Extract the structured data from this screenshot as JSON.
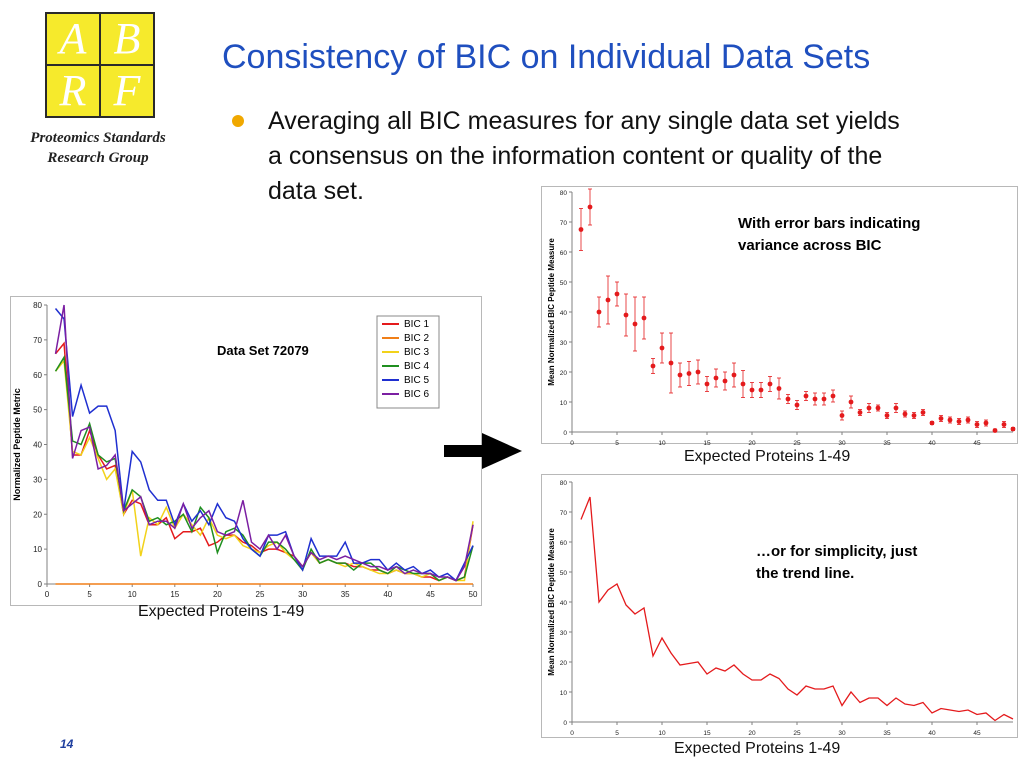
{
  "logo": {
    "letters": [
      "A",
      "B",
      "R",
      "F"
    ],
    "org_line1": "Proteomics Standards",
    "org_line2": "Research Group"
  },
  "title": "Consistency of BIC on Individual Data Sets",
  "bullet_lines": [
    "Averaging all BIC measures for any single data set yields",
    "a consensus on the information content or quality of the",
    "data set."
  ],
  "left_chart": {
    "caption": "Expected Proteins 1-49"
  },
  "right_top": {
    "caption": "Expected Proteins 1-49",
    "note_line1": "With error bars indicating",
    "note_line2": "variance across BIC"
  },
  "right_bottom": {
    "caption": "Expected Proteins 1-49",
    "note_line1": "…or for simplicity, just",
    "note_line2": "the trend line."
  },
  "page_number": "14",
  "colors": {
    "title": "#1f4fbf",
    "bullet": "#f0a800",
    "logo_fill": "#f6ea2c",
    "mean_series": "#e41a1c"
  },
  "chart_data": [
    {
      "type": "line",
      "title": "Data Set 72079",
      "xlabel": "",
      "ylabel": "Normalized Peptide Metric",
      "xlim": [
        0,
        50
      ],
      "ylim": [
        0,
        80
      ],
      "xticks": [
        0,
        5,
        10,
        15,
        20,
        25,
        30,
        35,
        40,
        45,
        50
      ],
      "yticks": [
        0,
        10,
        20,
        30,
        40,
        50,
        60,
        70,
        80
      ],
      "grid": false,
      "legend_position": "top-right",
      "x": [
        1,
        2,
        3,
        4,
        5,
        6,
        7,
        8,
        9,
        10,
        11,
        12,
        13,
        14,
        15,
        16,
        17,
        18,
        19,
        20,
        21,
        22,
        23,
        24,
        25,
        26,
        27,
        28,
        29,
        30,
        31,
        32,
        33,
        34,
        35,
        36,
        37,
        38,
        39,
        40,
        41,
        42,
        43,
        44,
        45,
        46,
        47,
        48,
        49,
        50
      ],
      "series": [
        {
          "name": "BIC 1",
          "color": "#e41a1c",
          "values": [
            66,
            69,
            37,
            37,
            44,
            37,
            33,
            34,
            20,
            24,
            23,
            17,
            17,
            19,
            13,
            15,
            15,
            16,
            11,
            12,
            14,
            14,
            12,
            11,
            9,
            10,
            10,
            9,
            8,
            5,
            9,
            6,
            7,
            6,
            6,
            5,
            5,
            4,
            4,
            3,
            4,
            3,
            3,
            2,
            2,
            1,
            2,
            1,
            2,
            17
          ]
        },
        {
          "name": "BIC 2",
          "color": "#f07f18",
          "values": [
            0,
            0,
            0,
            0,
            0,
            0,
            0,
            0,
            0,
            0,
            0,
            0,
            0,
            0,
            0,
            0,
            0,
            0,
            0,
            0,
            0,
            0,
            0,
            0,
            0,
            0,
            0,
            0,
            0,
            0,
            0,
            0,
            0,
            0,
            0,
            0,
            0,
            0,
            0,
            0,
            0,
            0,
            0,
            0,
            0,
            0,
            0,
            0,
            0,
            0
          ]
        },
        {
          "name": "BIC 3",
          "color": "#f2d21a",
          "values": [
            61,
            64,
            38,
            37,
            42,
            36,
            30,
            33,
            20,
            27,
            8,
            19,
            17,
            22,
            16,
            20,
            17,
            14,
            19,
            14,
            13,
            14,
            11,
            10,
            9,
            11,
            12,
            9,
            7,
            5,
            9,
            6,
            7,
            6,
            5,
            6,
            5,
            4,
            3,
            3,
            4,
            3,
            3,
            2,
            3,
            1,
            2,
            1,
            1,
            18
          ]
        },
        {
          "name": "BIC 4",
          "color": "#1f8f1f",
          "values": [
            61,
            65,
            41,
            40,
            46,
            37,
            35,
            36,
            21,
            27,
            25,
            18,
            19,
            17,
            18,
            20,
            15,
            22,
            19,
            9,
            15,
            16,
            14,
            10,
            8,
            12,
            12,
            10,
            7,
            4,
            10,
            6,
            7,
            6,
            6,
            4,
            6,
            6,
            4,
            3,
            5,
            4,
            3,
            3,
            3,
            1,
            2,
            1,
            2,
            11
          ]
        },
        {
          "name": "BIC 5",
          "color": "#1f2fd0",
          "values": [
            79,
            76,
            48,
            57,
            49,
            51,
            51,
            44,
            21,
            38,
            35,
            27,
            24,
            24,
            17,
            23,
            18,
            21,
            17,
            23,
            19,
            18,
            13,
            10,
            8,
            14,
            14,
            15,
            8,
            4,
            13,
            8,
            8,
            8,
            12,
            6,
            6,
            7,
            7,
            4,
            6,
            4,
            5,
            3,
            4,
            2,
            3,
            1,
            6,
            11
          ]
        },
        {
          "name": "BIC 6",
          "color": "#7b1fa2",
          "values": [
            66,
            80,
            36,
            44,
            45,
            33,
            34,
            37,
            21,
            23,
            25,
            17,
            18,
            18,
            16,
            23,
            16,
            19,
            21,
            15,
            14,
            15,
            24,
            12,
            10,
            14,
            10,
            14,
            8,
            5,
            9,
            7,
            8,
            7,
            8,
            7,
            6,
            5,
            5,
            4,
            5,
            3,
            4,
            3,
            3,
            2,
            2,
            1,
            5,
            17
          ]
        }
      ]
    },
    {
      "type": "scatter",
      "title": "",
      "xlabel": "",
      "ylabel": "Mean Normalized BIC Peptide Measure",
      "xlim": [
        0,
        49
      ],
      "ylim": [
        0,
        80
      ],
      "xticks": [
        0,
        5,
        10,
        15,
        20,
        25,
        30,
        35,
        40,
        45
      ],
      "yticks": [
        0,
        10,
        20,
        30,
        40,
        50,
        60,
        70,
        80
      ],
      "grid": false,
      "error_bars": true,
      "x": [
        1,
        2,
        3,
        4,
        5,
        6,
        7,
        8,
        9,
        10,
        11,
        12,
        13,
        14,
        15,
        16,
        17,
        18,
        19,
        20,
        21,
        22,
        23,
        24,
        25,
        26,
        27,
        28,
        29,
        30,
        31,
        32,
        33,
        34,
        35,
        36,
        37,
        38,
        39,
        40,
        41,
        42,
        43,
        44,
        45,
        46,
        47,
        48,
        49
      ],
      "series": [
        {
          "name": "",
          "color": "#e41a1c",
          "values": [
            67.5,
            75,
            40,
            44,
            46,
            39,
            36,
            38,
            22,
            28,
            23,
            19,
            19.5,
            20,
            16,
            18,
            17,
            19,
            16,
            14,
            14,
            16,
            14.5,
            11,
            9,
            12,
            11,
            11,
            12,
            5.5,
            10,
            6.5,
            8,
            8,
            5.5,
            8,
            6,
            5.5,
            6.5,
            3,
            4.5,
            4,
            3.5,
            4,
            2.5,
            3,
            0.5,
            2.5,
            1
          ],
          "errors": [
            7,
            6,
            5,
            8,
            4,
            7,
            9,
            7,
            2.5,
            5,
            10,
            4,
            4,
            4,
            2.5,
            3,
            3,
            4,
            4.5,
            2.5,
            2.5,
            2.5,
            3.5,
            1.5,
            1.5,
            1.5,
            2,
            2,
            2,
            1.5,
            2,
            1,
            1.5,
            1,
            1,
            1.5,
            1,
            1,
            1,
            0.5,
            1,
            1,
            1,
            1,
            1,
            1,
            0.5,
            1,
            0.5
          ]
        }
      ]
    },
    {
      "type": "line",
      "title": "",
      "xlabel": "",
      "ylabel": "Mean Normalized BIC Peptide Measure",
      "xlim": [
        0,
        49
      ],
      "ylim": [
        0,
        80
      ],
      "xticks": [
        0,
        5,
        10,
        15,
        20,
        25,
        30,
        35,
        40,
        45
      ],
      "yticks": [
        0,
        10,
        20,
        30,
        40,
        50,
        60,
        70,
        80
      ],
      "grid": false,
      "x": [
        1,
        2,
        3,
        4,
        5,
        6,
        7,
        8,
        9,
        10,
        11,
        12,
        13,
        14,
        15,
        16,
        17,
        18,
        19,
        20,
        21,
        22,
        23,
        24,
        25,
        26,
        27,
        28,
        29,
        30,
        31,
        32,
        33,
        34,
        35,
        36,
        37,
        38,
        39,
        40,
        41,
        42,
        43,
        44,
        45,
        46,
        47,
        48,
        49
      ],
      "series": [
        {
          "name": "",
          "color": "#e41a1c",
          "values": [
            67.5,
            75,
            40,
            44,
            46,
            39,
            36,
            38,
            22,
            28,
            23,
            19,
            19.5,
            20,
            16,
            18,
            17,
            19,
            16,
            14,
            14,
            16,
            14.5,
            11,
            9,
            12,
            11,
            11,
            12,
            5.5,
            10,
            6.5,
            8,
            8,
            5.5,
            8,
            6,
            5.5,
            6.5,
            3,
            4.5,
            4,
            3.5,
            4,
            2.5,
            3,
            0.5,
            2.5,
            1
          ]
        }
      ]
    }
  ]
}
